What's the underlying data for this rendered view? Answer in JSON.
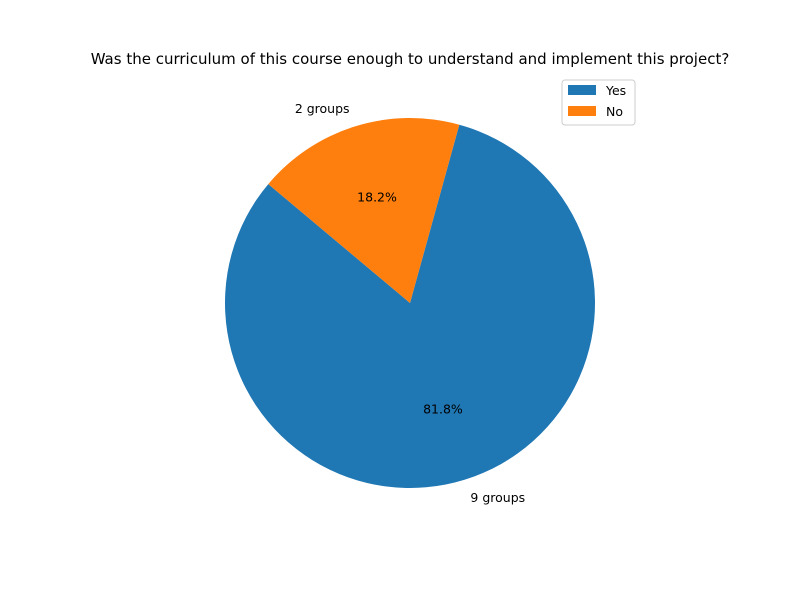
{
  "chart_data": {
    "type": "pie",
    "title": "Was the curriculum of this course enough to understand and implement this project?",
    "categories": [
      "Yes",
      "No"
    ],
    "values": [
      9,
      2
    ],
    "slice_labels": [
      "9 groups",
      "2 groups"
    ],
    "percent_labels": [
      "81.8%",
      "18.2%"
    ],
    "colors": [
      "#1f77b4",
      "#ff7f0e"
    ],
    "start_angle_deg": 140,
    "legend": {
      "placement": "top-right",
      "entries": [
        "Yes",
        "No"
      ]
    }
  }
}
